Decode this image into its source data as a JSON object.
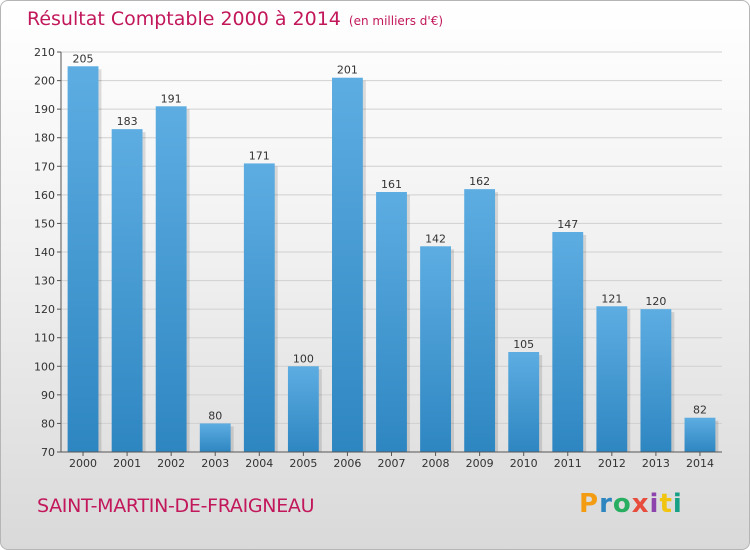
{
  "header": {
    "title": "Résultat Comptable 2000 à 2014",
    "subtitle": "(en milliers d'€)"
  },
  "footer": {
    "commune": "SAINT-MARTIN-DE-FRAIGNEAU",
    "logo": "Proxiti",
    "logo_colors": [
      "#f39c12",
      "#2e86c1",
      "#27ae60",
      "#e74c3c",
      "#8e44ad",
      "#f1c40f",
      "#16a085"
    ]
  },
  "chart_data": {
    "type": "bar",
    "title": "Résultat Comptable 2000 à 2014",
    "subtitle": "(en milliers d'€)",
    "xlabel": "",
    "ylabel": "",
    "categories": [
      "2000",
      "2001",
      "2002",
      "2003",
      "2004",
      "2005",
      "2006",
      "2007",
      "2008",
      "2009",
      "2010",
      "2011",
      "2012",
      "2013",
      "2014"
    ],
    "values": [
      205,
      183,
      191,
      80,
      171,
      100,
      201,
      161,
      142,
      162,
      105,
      147,
      121,
      120,
      82
    ],
    "ylim": [
      70,
      210
    ],
    "yticks": [
      70,
      80,
      90,
      100,
      110,
      120,
      130,
      140,
      150,
      160,
      170,
      180,
      190,
      200,
      210
    ],
    "grid": true,
    "data_labels": true,
    "bar_color_top": "#5dade2",
    "bar_color_bottom": "#2e86c1",
    "title_color": "#c2185b"
  }
}
